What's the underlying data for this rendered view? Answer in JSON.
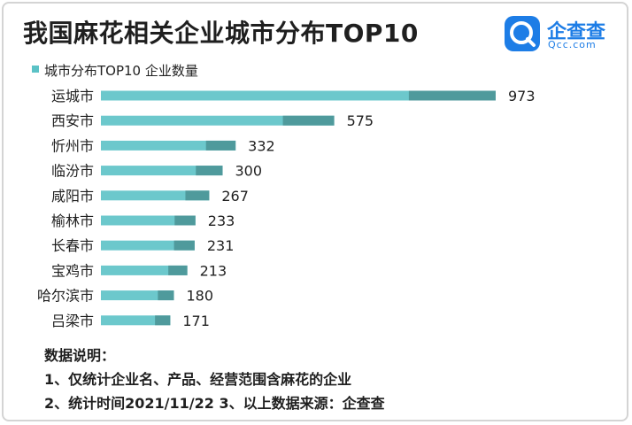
{
  "title": "我国麻花相关企业城市分布TOP10",
  "logo": {
    "name": "企查查",
    "domain": "Qcc.com",
    "icon": "qcc-logo-icon"
  },
  "colors": {
    "bar_main": "#6cc8cc",
    "bar_dark": "#4f9a9c",
    "text": "#1f1f1f"
  },
  "chart_data": {
    "type": "bar",
    "orientation": "horizontal",
    "categories": [
      "运城市",
      "西安市",
      "忻州市",
      "临汾市",
      "咸阳市",
      "榆林市",
      "长春市",
      "宝鸡市",
      "哈尔滨市",
      "吕梁市"
    ],
    "series": [
      {
        "name": "城市分布TOP10 企业数量",
        "values": [
          973,
          575,
          332,
          300,
          267,
          233,
          231,
          213,
          180,
          171
        ]
      }
    ],
    "value_labels": [
      "973",
      "575",
      "332",
      "300",
      "267",
      "233",
      "231",
      "213",
      "180",
      "171"
    ],
    "legend_position": "top-left",
    "grid": false
  },
  "notes": {
    "heading": "数据说明：",
    "line1": "1、仅统计企业名、产品、经营范围含麻花的企业",
    "line2": "2、统计时间2021/11/22   3、以上数据来源：企查查"
  }
}
